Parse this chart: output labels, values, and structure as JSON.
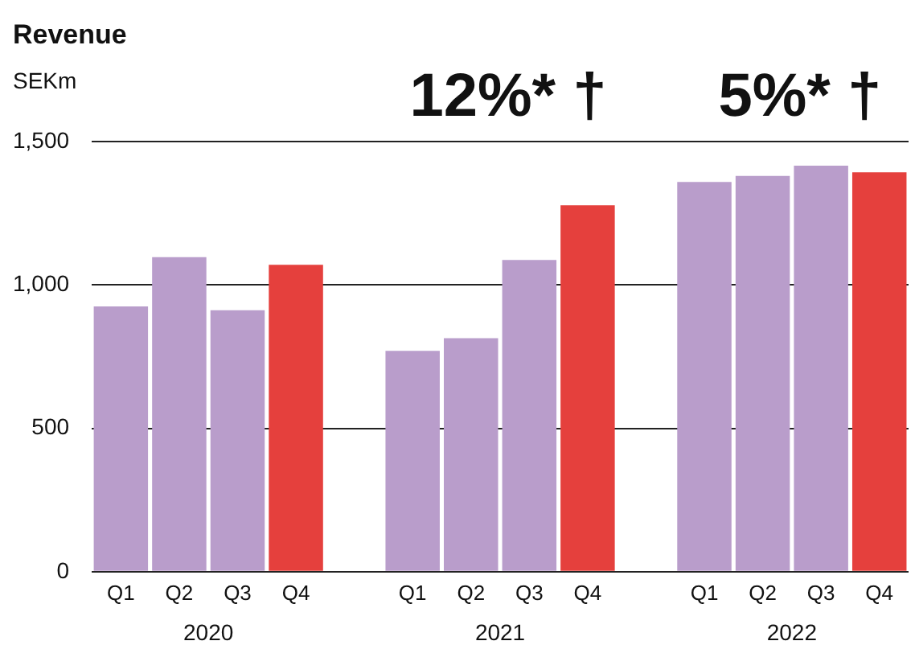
{
  "chart_data": {
    "type": "bar",
    "title": "Revenue",
    "ylabel": "SEKm",
    "categories": [
      "Q1",
      "Q2",
      "Q3",
      "Q4",
      null,
      "Q1",
      "Q2",
      "Q3",
      "Q4",
      null,
      "Q1",
      "Q2",
      "Q3",
      "Q4"
    ],
    "values": [
      925,
      1097,
      912,
      1070,
      null,
      770,
      814,
      1087,
      1278,
      null,
      1359,
      1380,
      1416,
      1393
    ],
    "colors": [
      "#b99dcb",
      "#b99dcb",
      "#b99dcb",
      "#e5403d",
      null,
      "#b99dcb",
      "#b99dcb",
      "#b99dcb",
      "#e5403d",
      null,
      "#b99dcb",
      "#b99dcb",
      "#b99dcb",
      "#e5403d"
    ],
    "annotations": [
      "2020",
      "2021",
      "2022",
      "12%* †",
      "5%* †"
    ],
    "ylim": [
      0,
      1500
    ],
    "yticks": [
      0,
      500,
      {
        "value": 1000,
        "label": "1,000"
      },
      {
        "value": 1500,
        "label": "1,500"
      }
    ],
    "grid": "y"
  }
}
